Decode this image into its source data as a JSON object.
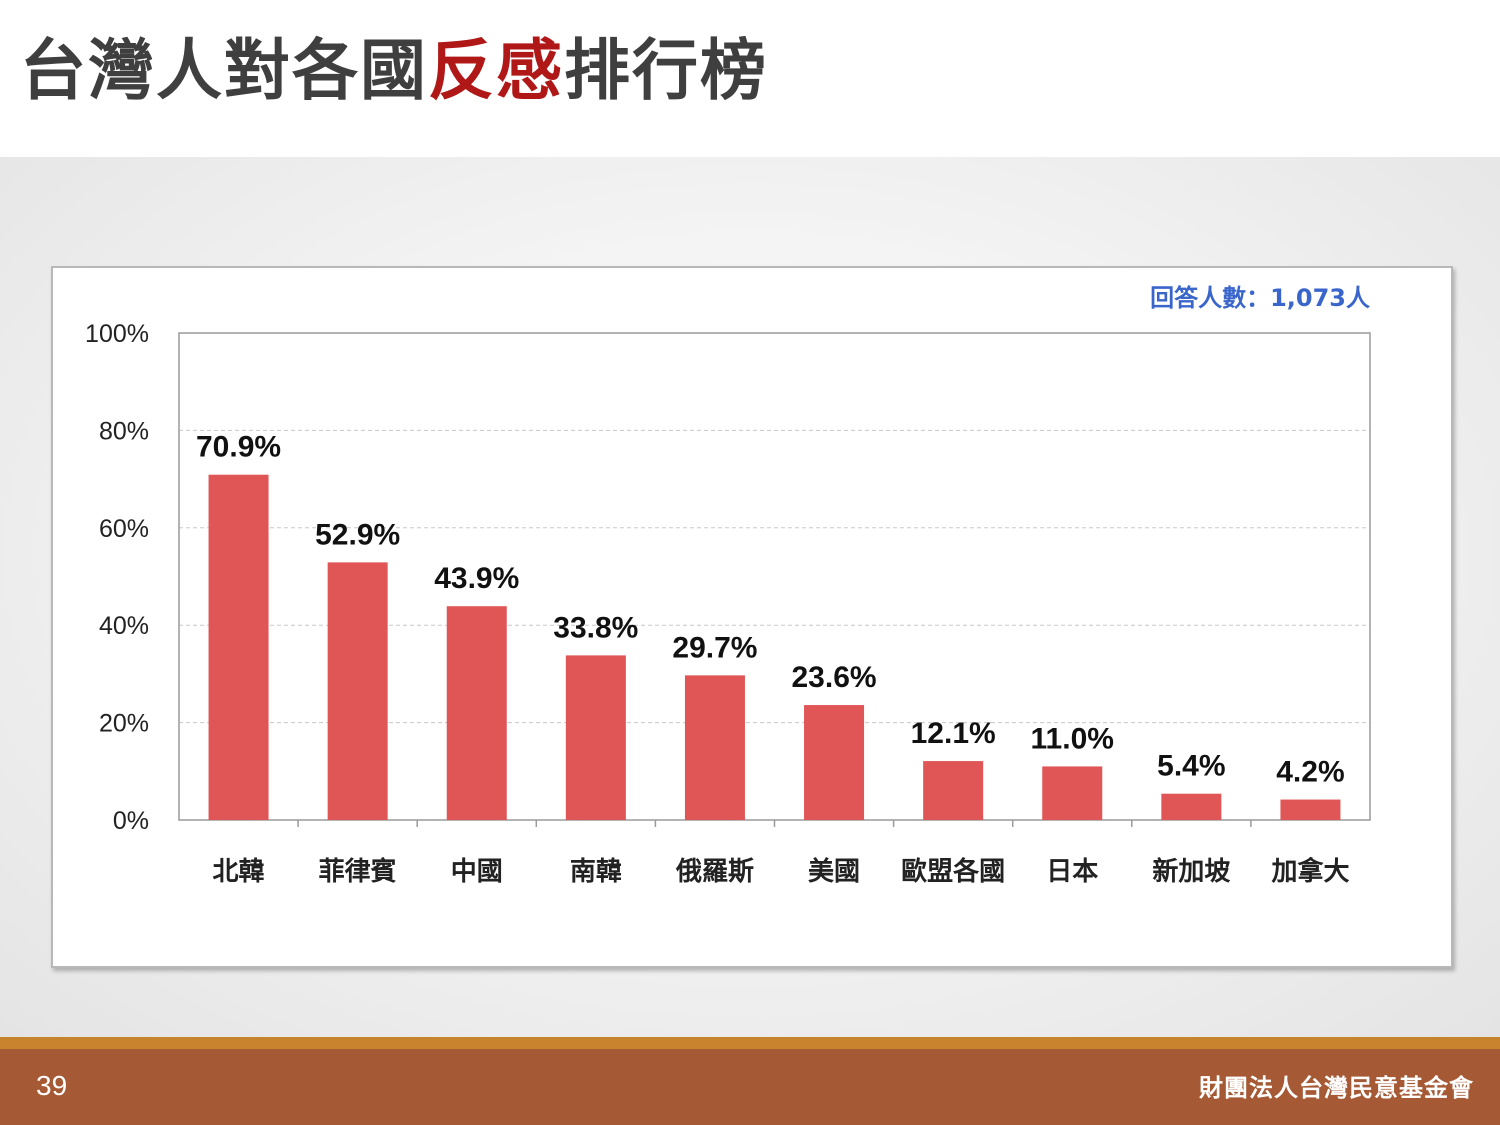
{
  "slide": {
    "title_part1": "台灣人對各國",
    "title_highlight": "反感",
    "title_part2": "排行榜",
    "page_number": "39",
    "organization": "財團法人台灣民意基金會"
  },
  "colors": {
    "bar": "#e05555",
    "title_highlight": "#b01818",
    "note": "#3a66cc",
    "footer": "#a55a35"
  },
  "chart_data": {
    "type": "bar",
    "note": "回答人數：1,073人",
    "categories": [
      "北韓",
      "菲律賓",
      "中國",
      "南韓",
      "俄羅斯",
      "美國",
      "歐盟各國",
      "日本",
      "新加坡",
      "加拿大"
    ],
    "values": [
      70.9,
      52.9,
      43.9,
      33.8,
      29.7,
      23.6,
      12.1,
      11.0,
      5.4,
      4.2
    ],
    "value_labels": [
      "70.9%",
      "52.9%",
      "43.9%",
      "33.8%",
      "29.7%",
      "23.6%",
      "12.1%",
      "11.0%",
      "5.4%",
      "4.2%"
    ],
    "ylim": [
      0,
      100
    ],
    "yticks": [
      0,
      20,
      40,
      60,
      80,
      100
    ],
    "ytick_labels": [
      "0%",
      "20%",
      "40%",
      "60%",
      "80%",
      "100%"
    ],
    "grid": true,
    "legend": false
  }
}
